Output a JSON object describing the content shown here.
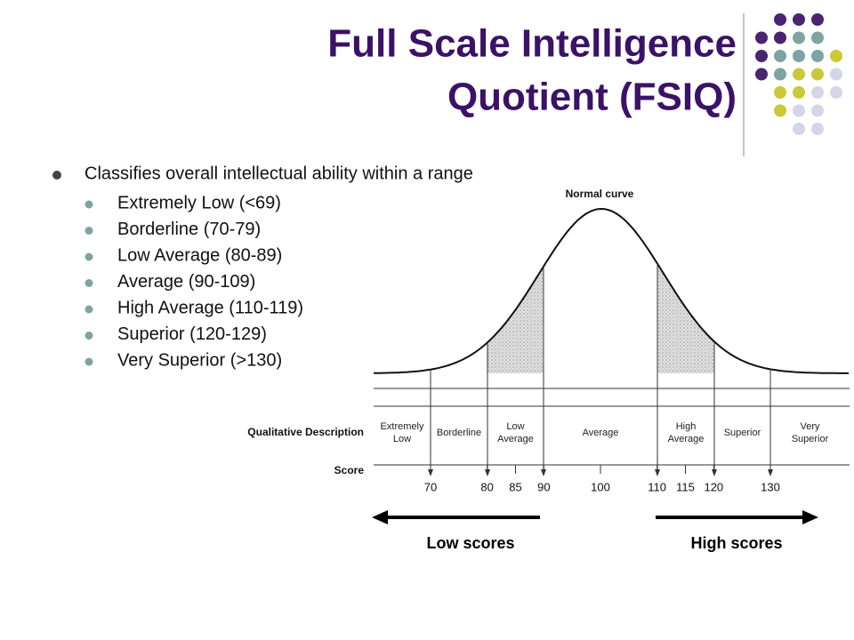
{
  "title": [
    "Full Scale Intelligence",
    "Quotient (FSIQ)"
  ],
  "bullet": "Classifies overall intellectual ability within a range",
  "sub_bullets": [
    "Extremely Low (<69)",
    "Borderline (70-79)",
    "Low Average (80-89)",
    "Average (90-109)",
    "High Average (110-119)",
    "Superior (120-129)",
    "Very Superior (>130)"
  ],
  "figure": {
    "curve_label": "Normal curve",
    "row_labels": [
      "Qualitative Description",
      "Score"
    ],
    "categories": [
      "Extremely Low",
      "Borderline",
      "Low Average",
      "Average",
      "High Average",
      "Superior",
      "Very Superior"
    ],
    "scores": [
      "70",
      "80",
      "85",
      "90",
      "100",
      "110",
      "115",
      "120",
      "130"
    ],
    "low_label": "Low scores",
    "high_label": "High scores"
  }
}
